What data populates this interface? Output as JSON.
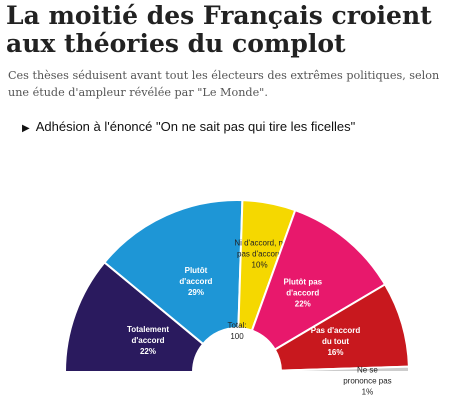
{
  "article": {
    "headline": "La moitié des Français croient aux théories du complot",
    "standfirst": "Ces thèses séduisent avant tout les électeurs des extrêmes politiques, selon une étude d'ampleur révélée par \"Le Monde\"."
  },
  "chart_data": {
    "type": "pie",
    "title": "Adhésion à l'énoncé \"On ne sait pas qui tire les ficelles\"",
    "center_label": "Total:",
    "center_value": "100",
    "slices": [
      {
        "label_lines": [
          "Totalement",
          "d'accord"
        ],
        "value": 22,
        "value_label": "22%",
        "color": "#2a1a5e"
      },
      {
        "label_lines": [
          "Plutôt",
          "d'accord"
        ],
        "value": 29,
        "value_label": "29%",
        "color": "#1e96d6"
      },
      {
        "label_lines": [
          "Ni d'accord, ni",
          "pas d'accord"
        ],
        "value": 10,
        "value_label": "10%",
        "color": "#f5d800"
      },
      {
        "label_lines": [
          "Plutôt pas",
          "d'accord"
        ],
        "value": 22,
        "value_label": "22%",
        "color": "#e8186c"
      },
      {
        "label_lines": [
          "Pas d'accord",
          "du tout"
        ],
        "value": 16,
        "value_label": "16%",
        "color": "#c8181e"
      },
      {
        "label_lines": [
          "Ne se",
          "prononce pas"
        ],
        "value": 1,
        "value_label": "1%",
        "color": "#cccccc"
      }
    ]
  }
}
